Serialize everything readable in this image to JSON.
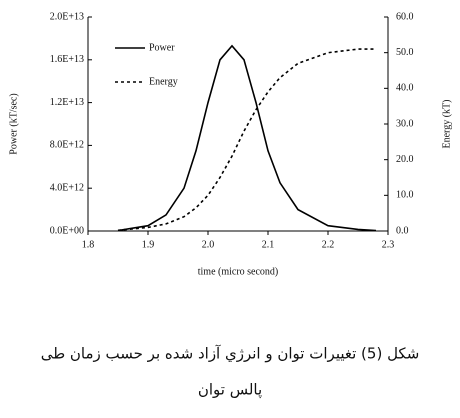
{
  "chart_data": {
    "type": "line",
    "xlabel": "time (micro second)",
    "ylabel": "Power (kT/sec)",
    "y2label": "Energy (kT)",
    "x": [
      1.85,
      1.9,
      1.93,
      1.96,
      1.98,
      2.0,
      2.02,
      2.04,
      2.06,
      2.08,
      2.1,
      2.12,
      2.15,
      2.2,
      2.25,
      2.28
    ],
    "series": [
      {
        "name": "Power",
        "color": "#000000",
        "line_style": "solid",
        "values": [
          50000000000,
          500000000000,
          1500000000000,
          4000000000000,
          7500000000000,
          12000000000000,
          16000000000000,
          17300000000000,
          16000000000000,
          12000000000000,
          7500000000000,
          4500000000000,
          2000000000000,
          500000000000,
          150000000000,
          50000000000
        ]
      },
      {
        "name": "Energy",
        "color": "#000000",
        "line_style": "dashed",
        "axis": "y2",
        "values": [
          0.2,
          1,
          2,
          4,
          6.5,
          10,
          15,
          21,
          28,
          34,
          39,
          43,
          47,
          50,
          51,
          51
        ]
      }
    ],
    "xlim": [
      1.8,
      2.3
    ],
    "xticks": [
      1.8,
      1.9,
      {
        "value": 2,
        "label": "2.0"
      },
      2.1,
      2.2,
      2.3
    ],
    "ylim": [
      0,
      20000000000000
    ],
    "yticks": [
      {
        "value": 0,
        "label": "0.0E+00"
      },
      {
        "value": 4000000000000,
        "label": "4.0E+12"
      },
      {
        "value": 8000000000000,
        "label": "8.0E+12"
      },
      {
        "value": 12000000000000,
        "label": "1.2E+13"
      },
      {
        "value": 16000000000000,
        "label": "1.6E+13"
      },
      {
        "value": 20000000000000,
        "label": "2.0E+13"
      }
    ],
    "y2lim": [
      0,
      60
    ],
    "y2ticks": [
      {
        "value": 0,
        "label": "0.0"
      },
      {
        "value": 10,
        "label": "10.0"
      },
      {
        "value": 20,
        "label": "20.0"
      },
      {
        "value": 30,
        "label": "30.0"
      },
      {
        "value": 40,
        "label": "40.0"
      },
      {
        "value": 50,
        "label": "50.0"
      },
      {
        "value": 60,
        "label": "60.0"
      }
    ],
    "legend": "upper left"
  },
  "caption": [
    "شكل (5) تغييرات توان و انرژي آزاد شده بر حسب زمان طی",
    "پالس توان"
  ]
}
